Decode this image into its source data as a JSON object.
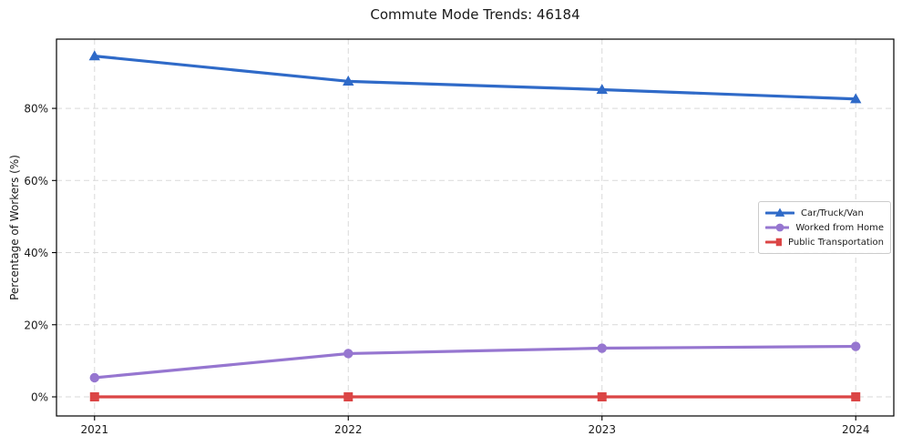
{
  "chart_data": {
    "type": "line",
    "title": "Commute Mode Trends: 46184",
    "xlabel": "",
    "ylabel": "Percentage of Workers (%)",
    "x": [
      2021,
      2022,
      2023,
      2024
    ],
    "x_tick_labels": [
      "2021",
      "2022",
      "2023",
      "2024"
    ],
    "y_ticks": [
      0,
      20,
      40,
      60,
      80
    ],
    "y_tick_labels": [
      "0%",
      "20%",
      "40%",
      "60%",
      "80%"
    ],
    "xlim": [
      2020.85,
      2024.15
    ],
    "ylim": [
      -5.3,
      99.2
    ],
    "grid": true,
    "grid_style": "dashed",
    "grid_color": "#d9d9d9",
    "spine_color": "#000000",
    "text_color": "#1a1a1a",
    "legend_position": "center-right",
    "series": [
      {
        "name": "Car/Truck/Van",
        "marker": "triangle",
        "color": "#2f6ac8",
        "values": [
          94.5,
          87.5,
          85.2,
          82.6
        ]
      },
      {
        "name": "Worked from Home",
        "marker": "circle",
        "color": "#9676d0",
        "values": [
          5.3,
          12.0,
          13.5,
          14.0
        ]
      },
      {
        "name": "Public Transportation",
        "marker": "square",
        "color": "#db4545",
        "values": [
          0.0,
          0.0,
          0.0,
          0.0
        ]
      }
    ]
  }
}
